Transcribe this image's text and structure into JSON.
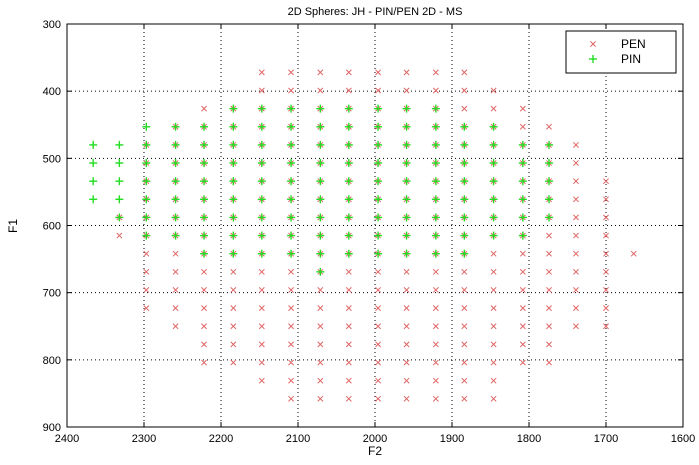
{
  "chart_data": {
    "type": "scatter",
    "title": "2D Spheres: JH - PIN/PEN 2D - MS",
    "xlabel": "F2",
    "ylabel": "F1",
    "xlim": [
      2400,
      1600
    ],
    "ylim": [
      300,
      900
    ],
    "x_reversed": true,
    "y_reversed": true,
    "x_ticks": [
      2400,
      2300,
      2200,
      2100,
      2000,
      1900,
      1800,
      1700,
      1600
    ],
    "y_ticks": [
      300,
      400,
      500,
      600,
      700,
      800,
      900
    ],
    "grid": true,
    "legend_position": "top-right",
    "series_colors": {
      "PEN": "#e06666",
      "PIN": "#22dd22"
    },
    "x_grid_values": [
      2366,
      2332,
      2297,
      2259,
      2222,
      2184,
      2147,
      2109,
      2071,
      2034,
      1996,
      1959,
      1921,
      1884,
      1846,
      1808,
      1774,
      1739,
      1700,
      1664
    ],
    "y_grid_values": [
      372,
      399,
      426,
      453,
      480,
      507,
      534,
      561,
      588,
      615,
      642,
      669,
      696,
      723,
      750,
      777,
      804,
      831,
      858
    ],
    "series": [
      {
        "name": "PEN",
        "marker": "x",
        "rows": [
          {
            "y": 372,
            "xi": [
              6,
              7,
              8,
              9,
              10,
              11,
              12,
              13
            ]
          },
          {
            "y": 399,
            "xi": [
              6,
              7,
              8,
              9,
              10,
              11,
              12,
              13,
              14
            ]
          },
          {
            "y": 426,
            "xi": [
              4,
              5,
              6,
              7,
              8,
              9,
              10,
              11,
              12,
              13,
              14,
              15
            ]
          },
          {
            "y": 453,
            "xi": [
              3,
              4,
              5,
              6,
              7,
              8,
              9,
              10,
              11,
              12,
              13,
              14,
              15,
              16
            ]
          },
          {
            "y": 480,
            "xi": [
              2,
              3,
              4,
              5,
              6,
              7,
              8,
              9,
              10,
              11,
              12,
              13,
              14,
              15,
              16,
              17
            ]
          },
          {
            "y": 507,
            "xi": [
              2,
              3,
              4,
              5,
              6,
              7,
              8,
              9,
              10,
              11,
              12,
              13,
              14,
              15,
              16,
              17
            ]
          },
          {
            "y": 534,
            "xi": [
              2,
              3,
              4,
              5,
              6,
              7,
              8,
              9,
              10,
              11,
              12,
              13,
              14,
              15,
              16,
              17,
              18
            ]
          },
          {
            "y": 561,
            "xi": [
              2,
              3,
              4,
              5,
              6,
              7,
              8,
              9,
              10,
              11,
              12,
              13,
              14,
              15,
              16,
              17,
              18
            ]
          },
          {
            "y": 588,
            "xi": [
              1,
              2,
              3,
              4,
              5,
              6,
              7,
              8,
              9,
              10,
              11,
              12,
              13,
              14,
              15,
              16,
              17,
              18
            ]
          },
          {
            "y": 615,
            "xi": [
              1,
              2,
              3,
              4,
              5,
              6,
              7,
              8,
              9,
              10,
              11,
              12,
              13,
              14,
              15,
              16,
              17,
              18
            ]
          },
          {
            "y": 642,
            "xi": [
              2,
              3,
              4,
              5,
              6,
              7,
              8,
              9,
              10,
              11,
              12,
              13,
              14,
              15,
              16,
              17,
              18,
              19
            ]
          },
          {
            "y": 669,
            "xi": [
              2,
              3,
              4,
              5,
              6,
              7,
              8,
              9,
              10,
              11,
              12,
              13,
              14,
              15,
              16,
              17,
              18
            ]
          },
          {
            "y": 696,
            "xi": [
              2,
              3,
              4,
              5,
              6,
              7,
              8,
              9,
              10,
              11,
              12,
              13,
              14,
              15,
              16,
              17,
              18
            ]
          },
          {
            "y": 723,
            "xi": [
              2,
              3,
              4,
              5,
              6,
              7,
              8,
              9,
              10,
              11,
              12,
              13,
              14,
              15,
              16,
              17,
              18
            ]
          },
          {
            "y": 750,
            "xi": [
              3,
              4,
              5,
              6,
              7,
              8,
              9,
              10,
              11,
              12,
              13,
              14,
              15,
              16,
              17,
              18
            ]
          },
          {
            "y": 777,
            "xi": [
              4,
              5,
              6,
              7,
              8,
              9,
              10,
              11,
              12,
              13,
              14,
              15,
              16
            ]
          },
          {
            "y": 804,
            "xi": [
              4,
              5,
              6,
              7,
              8,
              9,
              10,
              11,
              12,
              13,
              14,
              15,
              16
            ]
          },
          {
            "y": 831,
            "xi": [
              6,
              7,
              8,
              9,
              10,
              11,
              12,
              13,
              14
            ]
          },
          {
            "y": 858,
            "xi": [
              7,
              8,
              9,
              10,
              11,
              12,
              13,
              14
            ]
          }
        ]
      },
      {
        "name": "PIN",
        "marker": "+",
        "rows": [
          {
            "y": 426,
            "xi": [
              5,
              6,
              7,
              8,
              9,
              10,
              11,
              12
            ]
          },
          {
            "y": 453,
            "xi": [
              2,
              3,
              4,
              5,
              6,
              7,
              8,
              9,
              10,
              11,
              12,
              13,
              14
            ]
          },
          {
            "y": 480,
            "xi": [
              0,
              1,
              2,
              3,
              4,
              5,
              6,
              7,
              8,
              9,
              10,
              11,
              12,
              13,
              14,
              15,
              16
            ]
          },
          {
            "y": 507,
            "xi": [
              0,
              1,
              2,
              3,
              4,
              5,
              6,
              7,
              8,
              9,
              10,
              11,
              12,
              13,
              14,
              15,
              16
            ]
          },
          {
            "y": 534,
            "xi": [
              0,
              1,
              2,
              3,
              4,
              5,
              6,
              7,
              8,
              9,
              10,
              11,
              12,
              13,
              14,
              15,
              16
            ]
          },
          {
            "y": 561,
            "xi": [
              0,
              1,
              2,
              3,
              4,
              5,
              6,
              7,
              8,
              9,
              10,
              11,
              12,
              13,
              14,
              15,
              16
            ]
          },
          {
            "y": 588,
            "xi": [
              1,
              2,
              3,
              4,
              5,
              6,
              7,
              8,
              9,
              10,
              11,
              12,
              13,
              14,
              15,
              16
            ]
          },
          {
            "y": 615,
            "xi": [
              2,
              3,
              4,
              5,
              6,
              7,
              8,
              9,
              10,
              11,
              12,
              13,
              14,
              15
            ]
          },
          {
            "y": 642,
            "xi": [
              4,
              5,
              6,
              7,
              8,
              9,
              10,
              11,
              12,
              13
            ]
          },
          {
            "y": 669,
            "xi": [
              8
            ]
          }
        ]
      }
    ]
  }
}
